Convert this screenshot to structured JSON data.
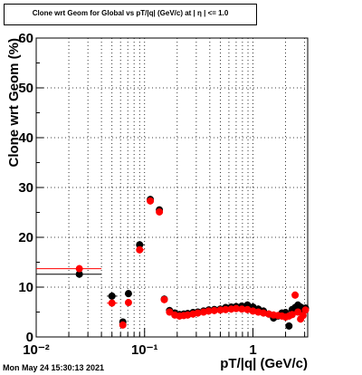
{
  "page": {
    "title": "Clone wrt Geom for Global vs pT/|q| (GeV/c) at | η | <= 1.0",
    "timestamp": "Mon May 24 15:30:13 2021"
  },
  "chart_data": {
    "type": "scatter",
    "title": "Clone wrt Geom for Global vs pT/|q| (GeV/c) at | η | <= 1.0",
    "xlabel": "pT/|q| (GeV/c)",
    "ylabel": "Clone wrt Geom (%)",
    "xscale": "log",
    "xlim": [
      0.01,
      3.2
    ],
    "ylim": [
      0,
      60
    ],
    "grid": true,
    "x_tick_labels": [
      "10⁻²",
      "10⁻¹",
      "1"
    ],
    "y_tick_labels": [
      "0",
      "10",
      "20",
      "30",
      "40",
      "50",
      "60"
    ],
    "series": [
      {
        "color": "#000000",
        "points": [
          {
            "x": 0.025,
            "y": 12.6,
            "xlo": 0.01,
            "xhi": 0.04
          },
          {
            "x": 0.05,
            "y": 8.2,
            "xlo": 0.045,
            "xhi": 0.056
          },
          {
            "x": 0.063,
            "y": 3.0,
            "xlo": 0.06,
            "xhi": 0.067
          },
          {
            "x": 0.071,
            "y": 8.7,
            "xlo": 0.068,
            "xhi": 0.075
          },
          {
            "x": 0.09,
            "y": 18.5,
            "xlo": 0.085,
            "xhi": 0.1
          },
          {
            "x": 0.113,
            "y": 27.6,
            "xlo": 0.105,
            "xhi": 0.12
          },
          {
            "x": 0.137,
            "y": 25.5,
            "xlo": 0.13,
            "xhi": 0.145
          },
          {
            "x": 0.152,
            "y": 7.6
          },
          {
            "x": 0.17,
            "y": 5.3
          },
          {
            "x": 0.19,
            "y": 4.8
          },
          {
            "x": 0.21,
            "y": 4.5
          },
          {
            "x": 0.23,
            "y": 4.6
          },
          {
            "x": 0.25,
            "y": 4.7
          },
          {
            "x": 0.28,
            "y": 4.9
          },
          {
            "x": 0.31,
            "y": 5.0
          },
          {
            "x": 0.35,
            "y": 5.2
          },
          {
            "x": 0.39,
            "y": 5.4
          },
          {
            "x": 0.44,
            "y": 5.5
          },
          {
            "x": 0.5,
            "y": 5.6
          },
          {
            "x": 0.56,
            "y": 5.9
          },
          {
            "x": 0.63,
            "y": 6.0
          },
          {
            "x": 0.7,
            "y": 6.1
          },
          {
            "x": 0.79,
            "y": 6.2
          },
          {
            "x": 0.89,
            "y": 6.4
          },
          {
            "x": 1.0,
            "y": 6.0
          },
          {
            "x": 1.12,
            "y": 5.6
          },
          {
            "x": 1.25,
            "y": 5.2
          },
          {
            "x": 1.4,
            "y": 4.6
          },
          {
            "x": 1.55,
            "y": 3.8
          },
          {
            "x": 1.7,
            "y": 4.2
          },
          {
            "x": 1.85,
            "y": 4.8
          },
          {
            "x": 2.0,
            "y": 4.9
          },
          {
            "x": 2.15,
            "y": 2.2
          },
          {
            "x": 2.3,
            "y": 5.5
          },
          {
            "x": 2.45,
            "y": 5.9
          },
          {
            "x": 2.6,
            "y": 6.4
          },
          {
            "x": 2.75,
            "y": 6.0
          },
          {
            "x": 2.9,
            "y": 5.6
          },
          {
            "x": 3.05,
            "y": 5.8
          }
        ]
      },
      {
        "color": "#ff0000",
        "points": [
          {
            "x": 0.025,
            "y": 13.7,
            "xlo": 0.01,
            "xhi": 0.04
          },
          {
            "x": 0.05,
            "y": 6.8,
            "xlo": 0.045,
            "xhi": 0.056
          },
          {
            "x": 0.063,
            "y": 2.4,
            "xlo": 0.06,
            "xhi": 0.067
          },
          {
            "x": 0.071,
            "y": 6.9,
            "xlo": 0.068,
            "xhi": 0.075
          },
          {
            "x": 0.09,
            "y": 17.5,
            "xlo": 0.085,
            "xhi": 0.1
          },
          {
            "x": 0.113,
            "y": 27.3,
            "xlo": 0.105,
            "xhi": 0.12
          },
          {
            "x": 0.137,
            "y": 25.1,
            "xlo": 0.13,
            "xhi": 0.145
          },
          {
            "x": 0.152,
            "y": 7.5
          },
          {
            "x": 0.17,
            "y": 5.0
          },
          {
            "x": 0.19,
            "y": 4.4
          },
          {
            "x": 0.21,
            "y": 4.2
          },
          {
            "x": 0.23,
            "y": 4.3
          },
          {
            "x": 0.25,
            "y": 4.4
          },
          {
            "x": 0.28,
            "y": 4.6
          },
          {
            "x": 0.31,
            "y": 4.8
          },
          {
            "x": 0.35,
            "y": 5.0
          },
          {
            "x": 0.39,
            "y": 5.2
          },
          {
            "x": 0.44,
            "y": 5.3
          },
          {
            "x": 0.5,
            "y": 5.4
          },
          {
            "x": 0.56,
            "y": 5.5
          },
          {
            "x": 0.63,
            "y": 5.6
          },
          {
            "x": 0.7,
            "y": 5.7
          },
          {
            "x": 0.79,
            "y": 5.6
          },
          {
            "x": 0.89,
            "y": 5.5
          },
          {
            "x": 1.0,
            "y": 5.2
          },
          {
            "x": 1.12,
            "y": 5.0
          },
          {
            "x": 1.25,
            "y": 4.8
          },
          {
            "x": 1.4,
            "y": 4.6
          },
          {
            "x": 1.55,
            "y": 4.4
          },
          {
            "x": 1.7,
            "y": 4.3
          },
          {
            "x": 1.85,
            "y": 4.2
          },
          {
            "x": 2.0,
            "y": 4.0
          },
          {
            "x": 2.15,
            "y": 4.2
          },
          {
            "x": 2.3,
            "y": 4.5
          },
          {
            "x": 2.45,
            "y": 8.4
          },
          {
            "x": 2.6,
            "y": 5.0
          },
          {
            "x": 2.75,
            "y": 3.6
          },
          {
            "x": 2.9,
            "y": 4.3
          },
          {
            "x": 3.05,
            "y": 5.4
          }
        ]
      }
    ]
  }
}
